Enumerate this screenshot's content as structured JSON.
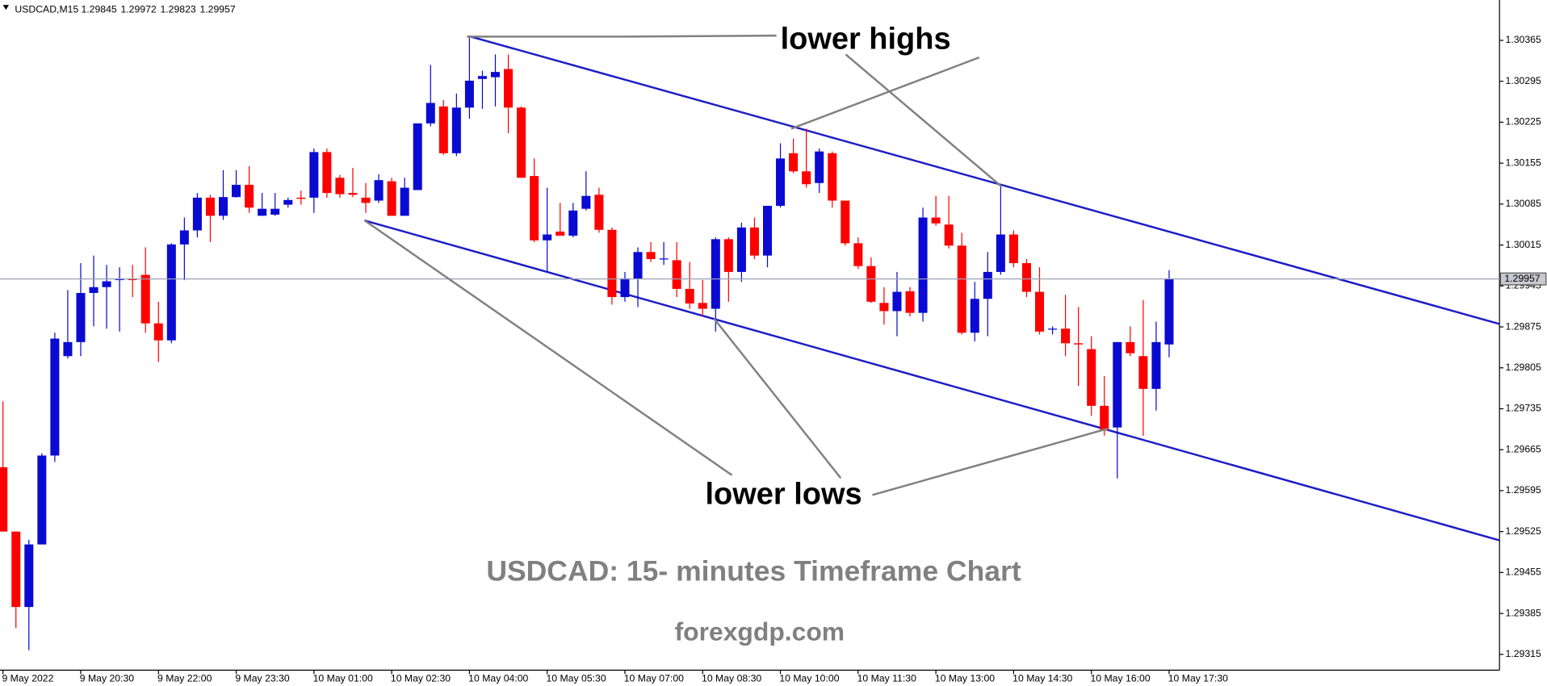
{
  "chart_data": {
    "type": "candlestick",
    "symbol": "USDCAD,M15",
    "title": "USDCAD: 15- minutes Timeframe Chart",
    "subtitle": "forexgdp.com",
    "annotations": [
      "lower highs",
      "lower lows"
    ],
    "categories": [
      "9 May 2022",
      null,
      null,
      null,
      null,
      null,
      "9 May 20:30",
      null,
      null,
      null,
      null,
      null,
      "9 May 22:00",
      null,
      null,
      null,
      null,
      null,
      "9 May 23:30",
      null,
      null,
      null,
      null,
      null,
      "10 May 01:00",
      null,
      null,
      null,
      null,
      null,
      "10 May 02:30",
      null,
      null,
      null,
      null,
      null,
      "10 May 04:00",
      null,
      null,
      null,
      null,
      null,
      "10 May 05:30",
      null,
      null,
      null,
      null,
      null,
      "10 May 07:00",
      null,
      null,
      null,
      null,
      null,
      "10 May 08:30",
      null,
      null,
      null,
      null,
      null,
      "10 May 10:00",
      null,
      null,
      null,
      null,
      null,
      "10 May 11:30",
      null,
      null,
      null,
      null,
      null,
      "10 May 13:00",
      null,
      null,
      null,
      null,
      null,
      "10 May 14:30",
      null,
      null,
      null,
      null,
      null,
      "10 May 16:00",
      null,
      null,
      null,
      null,
      null,
      "10 May 17:30"
    ],
    "open": [
      1.29635,
      1.29525,
      1.29396,
      1.29503,
      1.29655,
      1.29825,
      1.29849,
      1.29933,
      1.29943,
      1.29955,
      1.29957,
      1.29964,
      1.29881,
      1.29852,
      1.30016,
      1.3004,
      1.30096,
      1.30065,
      1.30097,
      1.30118,
      1.30065,
      1.30067,
      1.30084,
      1.30096,
      1.30096,
      1.30174,
      1.3013,
      1.30104,
      1.30096,
      1.30091,
      1.30124,
      1.30065,
      1.30109,
      1.30223,
      1.30252,
      1.30172,
      1.3025,
      1.30299,
      1.30302,
      1.30316,
      1.3025,
      1.30133,
      1.30023,
      1.30038,
      1.30031,
      1.30077,
      1.30101,
      1.30041,
      1.29926,
      1.29957,
      1.30003,
      1.29991,
      1.29989,
      1.2994,
      1.29916,
      1.29906,
      1.30025,
      1.29969,
      1.30045,
      1.29997,
      1.30082,
      1.30172,
      1.30141,
      1.30121,
      1.30172,
      1.30091,
      1.30018,
      1.29979,
      1.29916,
      1.29902,
      1.29936,
      1.29899,
      1.30062,
      1.3005,
      1.30014,
      1.29865,
      1.29923,
      1.29969,
      1.30033,
      1.29984,
      1.29935,
      1.29871,
      1.29872,
      1.29847,
      1.29837,
      1.2974,
      1.29703,
      1.29849,
      1.29825,
      1.29769,
      1.29845
    ],
    "high": [
      1.29748,
      1.29525,
      1.29511,
      1.29659,
      1.29865,
      1.29938,
      1.29984,
      1.29997,
      1.29981,
      1.29977,
      1.29981,
      1.30011,
      1.29918,
      1.30018,
      1.30062,
      1.30104,
      1.30101,
      1.30143,
      1.30143,
      1.3015,
      1.30104,
      1.30104,
      1.30096,
      1.30108,
      1.3018,
      1.3018,
      1.30135,
      1.30147,
      1.30121,
      1.30136,
      1.3013,
      1.3013,
      1.30223,
      1.30323,
      1.30263,
      1.30274,
      1.30372,
      1.30313,
      1.30341,
      1.30341,
      1.30252,
      1.30163,
      1.30113,
      1.30087,
      1.30087,
      1.30141,
      1.30113,
      1.30045,
      1.29969,
      1.30011,
      1.3002,
      1.3002,
      1.3002,
      1.29986,
      1.29955,
      1.30028,
      1.30028,
      1.30053,
      1.30062,
      1.30082,
      1.30189,
      1.30197,
      1.30214,
      1.3018,
      1.30175,
      1.30091,
      1.30028,
      1.29994,
      1.29943,
      1.29969,
      1.29943,
      1.30079,
      1.30099,
      1.30099,
      1.30036,
      1.29952,
      1.30003,
      1.30116,
      1.3004,
      1.29991,
      1.29977,
      1.29876,
      1.2993,
      1.29909,
      1.29859,
      1.29791,
      1.29849,
      1.29876,
      1.29921,
      1.29884,
      1.29972
    ],
    "low": [
      1.29525,
      1.2936,
      1.29322,
      1.29503,
      1.29644,
      1.29821,
      1.29825,
      1.29876,
      1.29872,
      1.29867,
      1.29926,
      1.29865,
      1.29815,
      1.29847,
      1.29955,
      1.30028,
      1.3002,
      1.30058,
      1.30096,
      1.3007,
      1.30065,
      1.30065,
      1.30079,
      1.30084,
      1.3007,
      1.30096,
      1.30096,
      1.30097,
      1.3007,
      1.30087,
      1.30065,
      1.30065,
      1.30109,
      1.30218,
      1.30169,
      1.30167,
      1.30231,
      1.30248,
      1.30252,
      1.30206,
      1.3013,
      1.3002,
      1.29969,
      1.30031,
      1.30028,
      1.30074,
      1.30036,
      1.29913,
      1.29918,
      1.29909,
      1.29986,
      1.29981,
      1.29926,
      1.29906,
      1.29893,
      1.29867,
      1.29918,
      1.29952,
      1.29991,
      1.29977,
      1.30079,
      1.30138,
      1.30113,
      1.30104,
      1.30079,
      1.30014,
      1.29974,
      1.29916,
      1.29879,
      1.29859,
      1.29893,
      1.29884,
      1.30048,
      1.30009,
      1.29862,
      1.2985,
      1.29859,
      1.29964,
      1.29977,
      1.29926,
      1.29862,
      1.29862,
      1.29825,
      1.29774,
      1.29723,
      1.29689,
      1.29616,
      1.29825,
      1.29689,
      1.29732,
      1.29823
    ],
    "close": [
      1.29525,
      1.29396,
      1.29503,
      1.29655,
      1.29855,
      1.29849,
      1.29933,
      1.29943,
      1.29953,
      1.29958,
      1.29955,
      1.29881,
      1.29852,
      1.30016,
      1.3004,
      1.30096,
      1.30065,
      1.30097,
      1.30118,
      1.30079,
      1.30077,
      1.30077,
      1.30092,
      1.30094,
      1.30174,
      1.30104,
      1.30102,
      1.30101,
      1.30087,
      1.30126,
      1.30065,
      1.30113,
      1.30223,
      1.30258,
      1.30172,
      1.3025,
      1.30296,
      1.30304,
      1.30311,
      1.3025,
      1.3013,
      1.30023,
      1.30033,
      1.30031,
      1.30074,
      1.30099,
      1.30041,
      1.29926,
      1.29958,
      1.30003,
      1.29991,
      1.29992,
      1.2994,
      1.29915,
      1.29906,
      1.30025,
      1.29969,
      1.30045,
      1.29997,
      1.30082,
      1.30163,
      1.30141,
      1.30119,
      1.30175,
      1.30091,
      1.30018,
      1.29979,
      1.29918,
      1.29902,
      1.29935,
      1.29899,
      1.30062,
      1.30052,
      1.30014,
      1.29865,
      1.29923,
      1.29969,
      1.30033,
      1.29984,
      1.29935,
      1.29867,
      1.29872,
      1.29847,
      1.29845,
      1.2974,
      1.29698,
      1.29849,
      1.2983,
      1.29769,
      1.29849,
      1.29957
    ],
    "up_color": "#0a0ad2",
    "down_color": "#ff0000",
    "trendlines": [
      {
        "color": "#1c1cc8",
        "x": [
          36,
          115.5
        ],
        "y": [
          1.30372,
          1.2988
        ]
      },
      {
        "color": "#1c1cc8",
        "x": [
          27.9,
          115.5
        ],
        "y": [
          1.30057,
          1.2951
        ]
      }
    ],
    "xlim": [
      -0.23,
      115.5
    ],
    "ylim": [
      1.29288,
      1.30434
    ],
    "yticks": [
      1.30365,
      1.30295,
      1.30225,
      1.30155,
      1.30085,
      1.30015,
      1.29945,
      1.29875,
      1.29805,
      1.29735,
      1.29665,
      1.29595,
      1.29525,
      1.29455,
      1.29385,
      1.29315
    ],
    "grid": false
  }
}
